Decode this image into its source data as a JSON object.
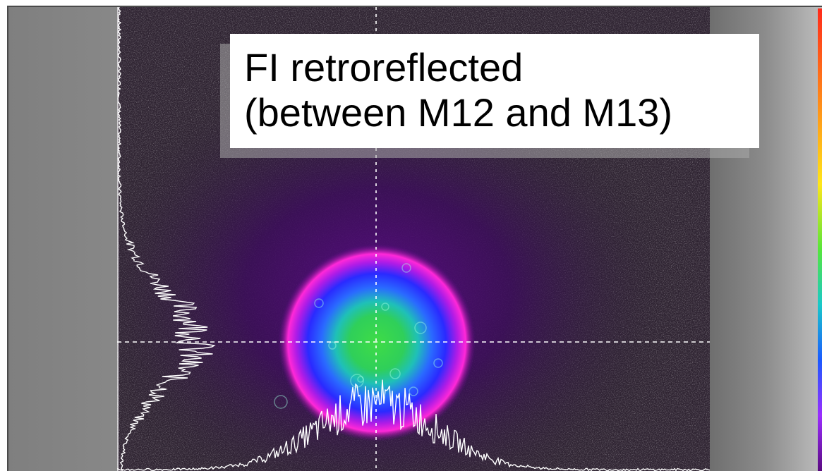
{
  "caption": {
    "text": "FI retroreflected\n(between M12 and M13)"
  },
  "colors": {
    "background_field": "#2f2432",
    "beam_core": "#3fdc46",
    "beam_ring": "#2a40ff",
    "beam_halo": "#d21ce0",
    "profile_line": "#ffffff",
    "crosshair": "#ffffff"
  }
}
